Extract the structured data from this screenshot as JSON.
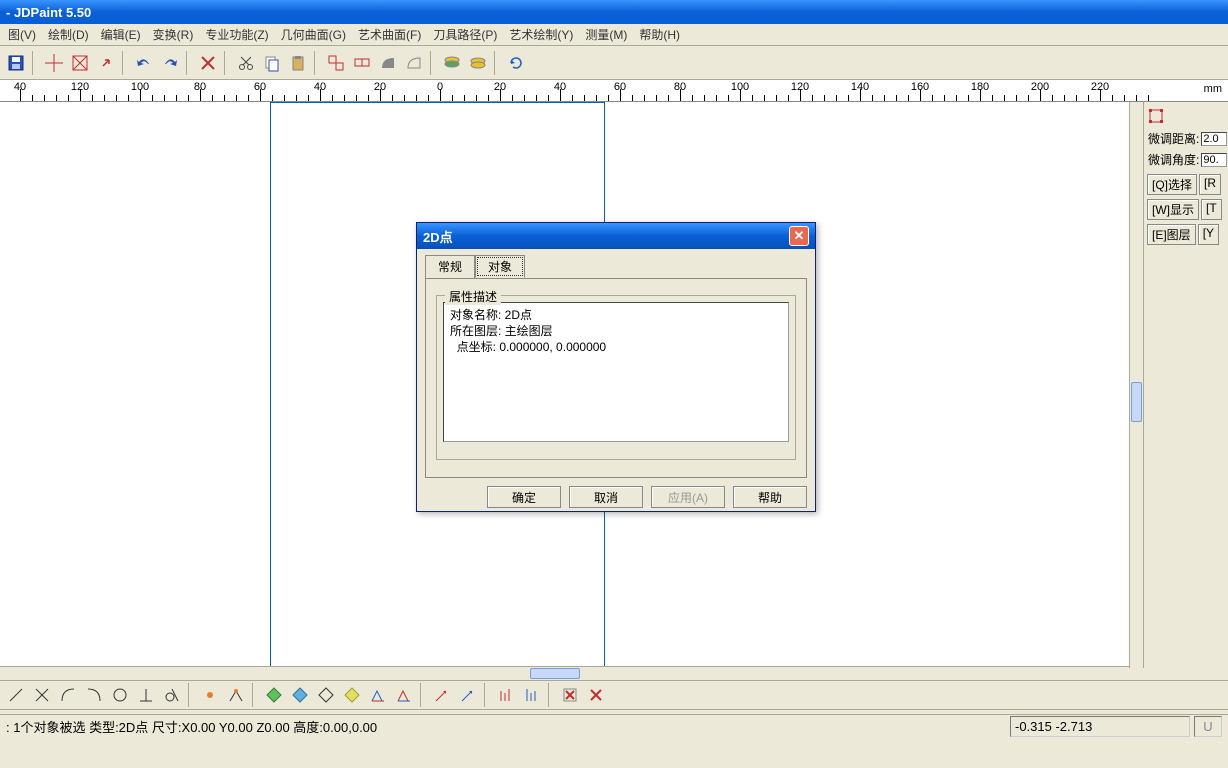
{
  "app": {
    "title": "- JDPaint 5.50"
  },
  "menus": [
    "图(V)",
    "绘制(D)",
    "编辑(E)",
    "变换(R)",
    "专业功能(Z)",
    "几何曲面(G)",
    "艺术曲面(F)",
    "刀具路径(P)",
    "艺术绘制(Y)",
    "测量(M)",
    "帮助(H)"
  ],
  "ruler": {
    "unit": "mm",
    "labels": [
      "40",
      "120",
      "100",
      "80",
      "60",
      "40",
      "20",
      "0",
      "20",
      "40",
      "60",
      "80",
      "100",
      "120",
      "140",
      "160",
      "180",
      "200",
      "220"
    ],
    "positions": [
      20,
      80,
      140,
      200,
      260,
      320,
      380,
      440,
      500,
      560,
      620,
      680,
      740,
      800,
      860,
      920,
      980,
      1040,
      1100
    ]
  },
  "rightPanel": {
    "dist_label": "微调距离:",
    "dist_value": "2.0",
    "angle_label": "微调角度:",
    "angle_value": "90.",
    "buttons": [
      "[Q]选择",
      "[R",
      "[W]显示",
      "[T",
      "[E]图层",
      "[Y"
    ]
  },
  "dialog": {
    "title": "2D点",
    "tabs": [
      "常规",
      "对象"
    ],
    "active_tab": 1,
    "fieldset_label": "属性描述",
    "desc_line1": "对象名称: 2D点",
    "desc_line2": "所在图层: 主绘图层",
    "desc_line3": "  点坐标: 0.000000, 0.000000",
    "buttons": {
      "ok": "确定",
      "cancel": "取消",
      "apply": "应用(A)",
      "help": "帮助"
    }
  },
  "status": {
    "left": ": 1个对象被选 类型:2D点 尺寸:X0.00 Y0.00 Z0.00 高度:0.00,0.00",
    "coords": "-0.315 -2.713",
    "indicator": "U"
  },
  "colors": {
    "titlebar_start": "#3a95ff",
    "titlebar_end": "#0a5fd6",
    "ui_bg": "#ece9d8",
    "canvas_border": "#0060c0"
  }
}
